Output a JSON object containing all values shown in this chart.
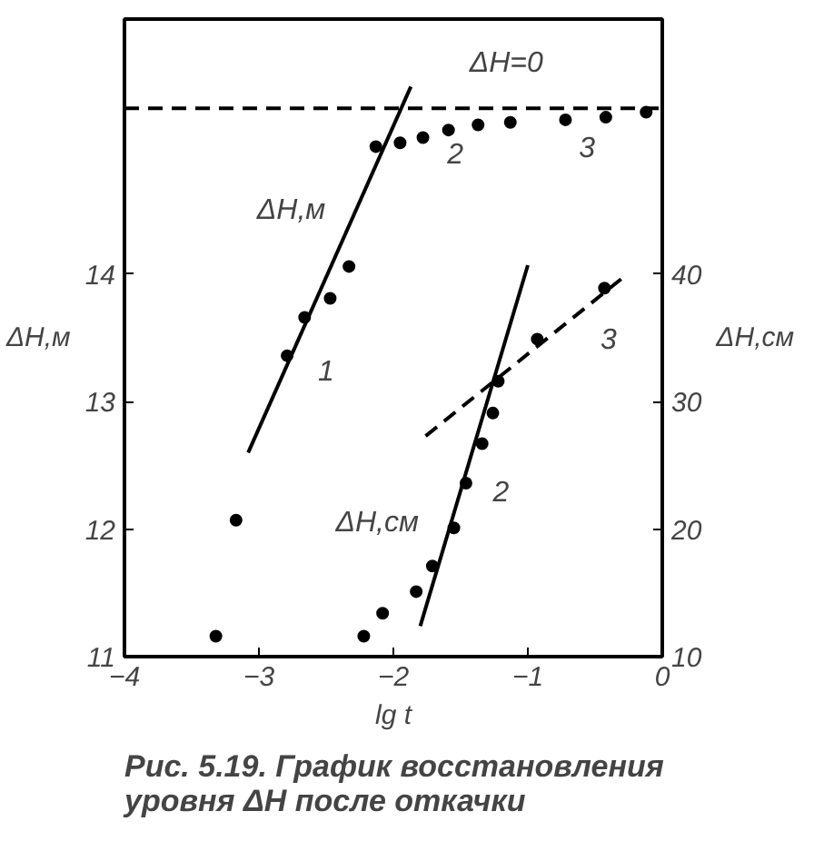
{
  "chart_data": {
    "type": "scatter",
    "title": "Рис. 5.19. График восстановления\nуровня ΔH после откачки",
    "xlabel": "lg t",
    "ylabel": "ΔH,м",
    "y2label": "ΔH,см",
    "xlim": [
      -4,
      0
    ],
    "xticks": [
      -4,
      -3,
      -2,
      -1,
      0
    ],
    "ylim": [
      11,
      16
    ],
    "yticks": [
      11,
      12,
      13,
      14
    ],
    "y2lim": [
      10,
      60
    ],
    "y2ticks": [
      10,
      20,
      30,
      40
    ],
    "grid": false,
    "marker": "circle",
    "series": [
      {
        "color": "#000000",
        "x": [
          -3.32,
          -3.17,
          -2.79,
          -2.66,
          -2.47,
          -2.33,
          -2.13,
          -1.95,
          -1.78,
          -1.59,
          -1.37,
          -1.13,
          -0.72,
          -0.42,
          -0.12
        ],
        "values": [
          11.16,
          12.07,
          13.36,
          13.66,
          13.81,
          14.06,
          15.0,
          15.03,
          15.07,
          15.13,
          15.17,
          15.19,
          15.21,
          15.23,
          15.27
        ]
      },
      {
        "color": "#000000",
        "axis": "y2",
        "x": [
          -2.22,
          -2.08,
          -1.83,
          -1.71,
          -1.55,
          -1.46,
          -1.34,
          -1.26,
          -1.22,
          -0.93,
          -0.43
        ],
        "values": [
          11.6,
          13.4,
          15.1,
          17.1,
          20.1,
          23.6,
          26.7,
          29.1,
          31.6,
          34.9,
          38.9
        ]
      },
      {
        "type": "line",
        "color": "#000000",
        "line_style": "solid",
        "marker": "none",
        "x": [
          -3.08,
          -1.87
        ],
        "values": [
          12.6,
          15.47
        ]
      },
      {
        "type": "line",
        "color": "#000000",
        "line_style": "solid",
        "marker": "none",
        "axis": "y2",
        "x": [
          -1.8,
          -1.0
        ],
        "values": [
          12.4,
          40.7
        ]
      },
      {
        "type": "line",
        "color": "#000000",
        "line_style": "dashed",
        "marker": "none",
        "axis": "y2",
        "x": [
          -1.76,
          -0.26
        ],
        "values": [
          27.3,
          40
        ]
      }
    ],
    "ref_lines": [
      {
        "axis": "y",
        "value": 15.3,
        "line_style": "dashed",
        "color": "#000000"
      }
    ],
    "annotations": [
      "ΔH=0",
      "1",
      "2",
      "3",
      "2",
      "3",
      "ΔH,м",
      "ΔH,см"
    ]
  }
}
